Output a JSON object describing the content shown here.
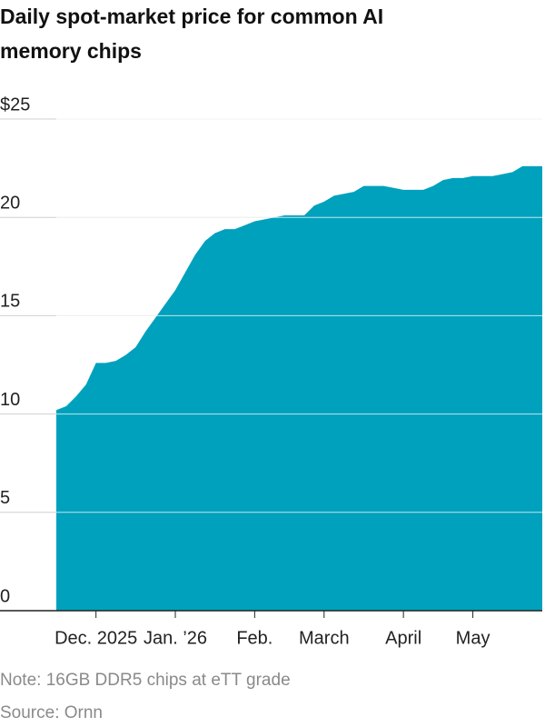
{
  "chart_data": {
    "type": "area",
    "title": "Daily spot-market price for common AI memory chips",
    "note": "Note: 16GB DDR5 chips at eTT grade",
    "source": "Source: Ornn",
    "categories": [
      null,
      null,
      null,
      null,
      "Dec. 2025",
      null,
      null,
      null,
      null,
      null,
      null,
      null,
      "Jan. ’26",
      null,
      null,
      null,
      null,
      null,
      null,
      null,
      "Feb.",
      null,
      null,
      null,
      null,
      null,
      null,
      "March",
      null,
      null,
      null,
      null,
      null,
      null,
      null,
      "April",
      null,
      null,
      null,
      null,
      null,
      null,
      "May",
      null,
      null,
      null,
      null,
      null,
      null,
      null
    ],
    "values": [
      10.2,
      10.4,
      10.9,
      11.5,
      12.6,
      12.6,
      12.7,
      13.0,
      13.4,
      14.2,
      14.9,
      15.6,
      16.3,
      17.2,
      18.1,
      18.8,
      19.2,
      19.4,
      19.4,
      19.6,
      19.8,
      19.9,
      20.0,
      20.1,
      20.1,
      20.1,
      20.6,
      20.8,
      21.1,
      21.2,
      21.3,
      21.6,
      21.6,
      21.6,
      21.5,
      21.4,
      21.4,
      21.4,
      21.6,
      21.9,
      22.0,
      22.0,
      22.1,
      22.1,
      22.1,
      22.2,
      22.3,
      22.6,
      22.6,
      22.6
    ],
    "color": "#00a1bd",
    "ylim": [
      0,
      25
    ],
    "yticks": [
      0,
      5,
      10,
      15,
      20,
      {
        "value": 25,
        "label": "$25"
      }
    ],
    "grid": true
  }
}
